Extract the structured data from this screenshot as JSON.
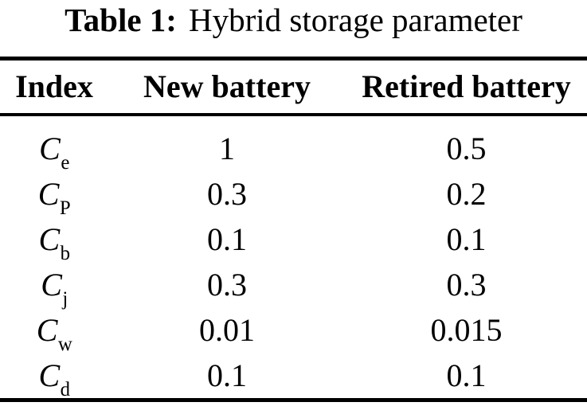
{
  "caption": {
    "label": "Table 1:",
    "text": "Hybrid storage parameter"
  },
  "table": {
    "columns": [
      {
        "label": "Index"
      },
      {
        "label": "New battery"
      },
      {
        "label": "Retired battery"
      }
    ],
    "rows": [
      {
        "base": "C",
        "sub": "e",
        "new_battery": "1",
        "retired_battery": "0.5"
      },
      {
        "base": "C",
        "sub": "P",
        "new_battery": "0.3",
        "retired_battery": "0.2"
      },
      {
        "base": "C",
        "sub": "b",
        "new_battery": "0.1",
        "retired_battery": "0.1"
      },
      {
        "base": "C",
        "sub": "j",
        "new_battery": "0.3",
        "retired_battery": "0.3"
      },
      {
        "base": "C",
        "sub": "w",
        "new_battery": "0.01",
        "retired_battery": "0.015"
      },
      {
        "base": "C",
        "sub": "d",
        "new_battery": "0.1",
        "retired_battery": "0.1"
      }
    ]
  },
  "colors": {
    "text": "#000000",
    "background": "#ffffff",
    "rule": "#000000"
  }
}
